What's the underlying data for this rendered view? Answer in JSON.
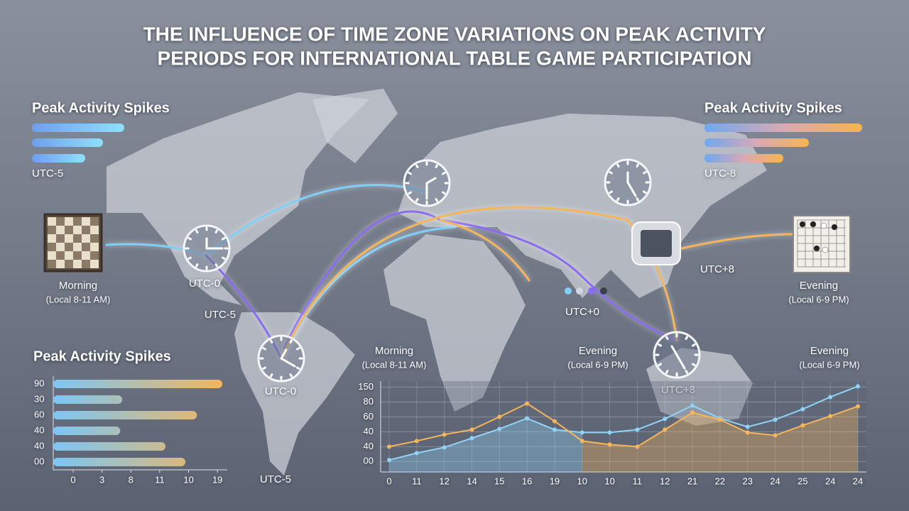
{
  "title_lines": [
    "THE INFLUENCE OF TIME ZONE VARIATIONS ON PEAK ACTIVITY",
    "PERIODS FOR INTERNATIONAL TABLE GAME PARTICIPATION"
  ],
  "panels": [
    {
      "heading": "Peak Activity Spikes",
      "label": "UTC-5"
    },
    {
      "heading": "Peak Activity Spikes",
      "label": "UTC-8"
    }
  ],
  "map_labels": [
    "UTC-0",
    "UTC-5",
    "UTC-0",
    "UTC+0",
    "UTC+8",
    "UTC+8",
    "UTC-5"
  ],
  "periods": [
    {
      "name": "Morning",
      "hours": "(Local 8-11 AM)"
    },
    {
      "name": "Evening",
      "hours": "(Local 6-9 PM)"
    },
    {
      "name": "Morning",
      "hours": "(Local 8-11 AM)"
    },
    {
      "name": "Evening",
      "hours": "(Local 6-9 PM)"
    },
    {
      "name": "Evening",
      "hours": "(Local 6-9 PM)"
    }
  ],
  "chart_data": [
    {
      "type": "hbar",
      "title": "Peak Activity Spikes",
      "categories": [
        "90",
        "30",
        "60",
        "40",
        "40",
        "00"
      ],
      "values": [
        5.17,
        1.7,
        4.29,
        1.63,
        3.2,
        3.89
      ],
      "colors": [
        "#7cc6f5",
        "#f5b55a"
      ],
      "xlim": [
        -0.69,
        5.34
      ],
      "xticks": [
        0,
        {
          "value": 1,
          "label": "3"
        },
        {
          "value": 2,
          "label": "8"
        },
        {
          "value": 3,
          "label": "11"
        },
        {
          "value": 4,
          "label": "10"
        },
        {
          "value": 5,
          "label": "19"
        }
      ]
    },
    {
      "type": "line",
      "categories": [
        "0",
        "11",
        "12",
        "14",
        "15",
        "16",
        "19",
        "10",
        "10",
        "11",
        "12",
        "21",
        "22",
        "23",
        "24",
        "25",
        "24",
        "24"
      ],
      "series": [
        {
          "color": "#8fd3f7",
          "values": [
            0.1,
            0.57,
            0.95,
            1.57,
            2.19,
            2.9,
            2.14,
            1.95,
            1.95,
            2.14,
            2.86,
            3.76,
            2.9,
            2.33,
            2.81,
            3.52,
            4.33,
            5.05
          ]
        },
        {
          "color": "#f5b55a",
          "values": [
            1.0,
            1.38,
            1.81,
            2.14,
            3.0,
            3.9,
            2.71,
            1.38,
            1.14,
            1.0,
            2.14,
            3.29,
            2.81,
            1.95,
            1.76,
            2.43,
            3.05,
            3.71
          ]
        }
      ],
      "ylim": [
        -0.7,
        5.4
      ],
      "yticks": [
        {
          "value": 0,
          "label": "00"
        },
        {
          "value": 1,
          "label": "40"
        },
        {
          "value": 2,
          "label": "40"
        },
        {
          "value": 3,
          "label": "60"
        },
        {
          "value": 4,
          "label": "80"
        },
        {
          "value": 5,
          "label": "150"
        }
      ],
      "grid": true
    }
  ]
}
